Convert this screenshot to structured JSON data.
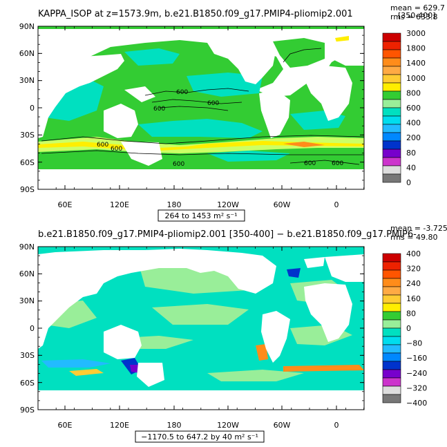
{
  "colors": {
    "land": "#ffffff",
    "ocean_base": "#33cc33",
    "frame": "#000000"
  },
  "panels": [
    {
      "title": "KAPPA_ISOP at z=1573.9m, b.e21.B1850.f09_g17.PMIP4-pliomip2.001",
      "subtitle_right": "[350-400]",
      "mean_label": "mean = 629.7",
      "rms_label": "rms = 633.8",
      "range_label": "264 to 1453 m² s⁻¹",
      "contour_labels": [
        "600",
        "600",
        "600",
        "600",
        "600",
        "600",
        "600",
        "600"
      ],
      "colorbar": {
        "labels": [
          "3000",
          "1800",
          "1400",
          "1000",
          "800",
          "600",
          "400",
          "200",
          "80",
          "40",
          "0"
        ],
        "colors": [
          "#cc0000",
          "#ee2200",
          "#ff5500",
          "#ff8c1a",
          "#ffaa44",
          "#ffcc33",
          "#ffee00",
          "#33cc33",
          "#99ee99",
          "#00e0c0",
          "#00ddee",
          "#22bbff",
          "#0088ff",
          "#0033cc",
          "#7700cc",
          "#cc33cc",
          "#dddddd",
          "#777777"
        ]
      }
    },
    {
      "title": "b.e21.B1850.f09_g17.PMIP4-pliomip2.001 [350-400] − b.e21.B1850.f09_g17.PMIP6-",
      "mean_label": "mean = -3.725",
      "rms_label": "rms = 49.80",
      "range_label": "−1170.5 to 647.2 by 40 m² s⁻¹",
      "colorbar": {
        "labels": [
          "400",
          "320",
          "240",
          "160",
          "80",
          "0",
          "−80",
          "−160",
          "−240",
          "−320",
          "−400"
        ],
        "colors": [
          "#cc0000",
          "#ee2200",
          "#ff5500",
          "#ff8c1a",
          "#ffaa44",
          "#ffcc33",
          "#ffee00",
          "#33cc33",
          "#99ee99",
          "#00e0c0",
          "#00ddee",
          "#22bbff",
          "#0088ff",
          "#0033cc",
          "#7700cc",
          "#cc33cc",
          "#dddddd",
          "#777777"
        ]
      }
    }
  ],
  "axes": {
    "lat_labels": [
      "90N",
      "60N",
      "30N",
      "0",
      "30S",
      "60S",
      "90S"
    ],
    "lon_labels": [
      "60E",
      "120E",
      "180",
      "120W",
      "60W",
      "0"
    ]
  }
}
